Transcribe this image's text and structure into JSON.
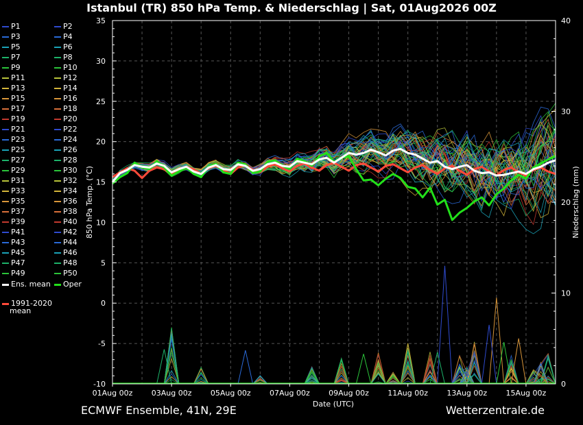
{
  "header": {
    "title": "Istanbul  (TR)  850 hPa Temp. & Niederschlag | Sat, 01Aug2026 00Z"
  },
  "footer": {
    "model": "ECMWF Ensemble, 41N, 29E",
    "source": "Wetterzentrale.de"
  },
  "legend": {
    "members": [
      {
        "label": "P1",
        "color": "#2f4bd0"
      },
      {
        "label": "P2",
        "color": "#2f4bd0"
      },
      {
        "label": "P3",
        "color": "#2a6ad8"
      },
      {
        "label": "P4",
        "color": "#2a6ad8"
      },
      {
        "label": "P5",
        "color": "#1aa3b8"
      },
      {
        "label": "P6",
        "color": "#1aa3b8"
      },
      {
        "label": "P7",
        "color": "#1db36a"
      },
      {
        "label": "P8",
        "color": "#1db36a"
      },
      {
        "label": "P9",
        "color": "#2bc43a"
      },
      {
        "label": "P10",
        "color": "#2bc43a"
      },
      {
        "label": "P11",
        "color": "#b9c43a"
      },
      {
        "label": "P12",
        "color": "#b9c43a"
      },
      {
        "label": "P13",
        "color": "#d4b63a"
      },
      {
        "label": "P14",
        "color": "#d4b63a"
      },
      {
        "label": "P15",
        "color": "#d9963a"
      },
      {
        "label": "P16",
        "color": "#d9963a"
      },
      {
        "label": "P17",
        "color": "#d9703a"
      },
      {
        "label": "P18",
        "color": "#d9703a"
      },
      {
        "label": "P19",
        "color": "#c43a2f"
      },
      {
        "label": "P20",
        "color": "#c43a2f"
      },
      {
        "label": "P21",
        "color": "#2f4bd0"
      },
      {
        "label": "P22",
        "color": "#2f4bd0"
      },
      {
        "label": "P23",
        "color": "#2a6ad8"
      },
      {
        "label": "P24",
        "color": "#2a6ad8"
      },
      {
        "label": "P25",
        "color": "#1aa3b8"
      },
      {
        "label": "P26",
        "color": "#1aa3b8"
      },
      {
        "label": "P27",
        "color": "#1db36a"
      },
      {
        "label": "P28",
        "color": "#1db36a"
      },
      {
        "label": "P29",
        "color": "#2bc43a"
      },
      {
        "label": "P30",
        "color": "#2bc43a"
      },
      {
        "label": "P31",
        "color": "#b9c43a"
      },
      {
        "label": "P32",
        "color": "#b9c43a"
      },
      {
        "label": "P33",
        "color": "#d4b63a"
      },
      {
        "label": "P34",
        "color": "#d4b63a"
      },
      {
        "label": "P35",
        "color": "#d9963a"
      },
      {
        "label": "P36",
        "color": "#d9963a"
      },
      {
        "label": "P37",
        "color": "#d9703a"
      },
      {
        "label": "P38",
        "color": "#d9703a"
      },
      {
        "label": "P39",
        "color": "#c43a2f"
      },
      {
        "label": "P40",
        "color": "#c43a2f"
      },
      {
        "label": "P41",
        "color": "#2f4bd0"
      },
      {
        "label": "P42",
        "color": "#2f4bd0"
      },
      {
        "label": "P43",
        "color": "#2a6ad8"
      },
      {
        "label": "P44",
        "color": "#2a6ad8"
      },
      {
        "label": "P45",
        "color": "#1aa3b8"
      },
      {
        "label": "P46",
        "color": "#1aa3b8"
      },
      {
        "label": "P47",
        "color": "#1db36a"
      },
      {
        "label": "P48",
        "color": "#1db36a"
      },
      {
        "label": "P49",
        "color": "#2bc43a"
      },
      {
        "label": "P50",
        "color": "#2bc43a"
      }
    ],
    "ens_mean": {
      "label": "Ens. mean",
      "color": "#ffffff"
    },
    "oper": {
      "label": "Oper",
      "color": "#22e01a"
    },
    "climate": {
      "label_line1": "1991-2020",
      "label_line2": "mean",
      "color": "#ff4a3a"
    }
  },
  "chart_data": {
    "type": "line",
    "xlabel": "Date (UTC)",
    "ylabel_left": "850 hPa Temp. (°C)",
    "ylabel_right": "Niederschlag (mm)",
    "ylim_left": [
      -10,
      35
    ],
    "ylim_right": [
      0,
      40
    ],
    "yticks_left": [
      -10,
      -5,
      0,
      5,
      10,
      15,
      20,
      25,
      30,
      35
    ],
    "yticks_right": [
      0,
      10,
      20,
      30,
      40
    ],
    "x_tick_labels": [
      "01Aug 00z",
      "03Aug 00z",
      "05Aug 00z",
      "07Aug 00z",
      "09Aug 00z",
      "11Aug 00z",
      "13Aug 00z",
      "15Aug 00z"
    ],
    "x_step_hours": 6,
    "x_range_hours": [
      0,
      360
    ],
    "grid": true,
    "series": [
      {
        "name": "Ens. mean",
        "values": [
          15.0,
          16.1,
          16.5,
          17.1,
          16.9,
          16.8,
          17.3,
          17.0,
          16.2,
          16.6,
          16.9,
          16.3,
          16.0,
          16.8,
          17.1,
          16.6,
          16.5,
          17.2,
          17.0,
          16.4,
          16.6,
          17.2,
          17.4,
          17.0,
          16.9,
          17.6,
          17.4,
          17.2,
          17.8,
          18.0,
          17.4,
          18.0,
          18.6,
          18.4,
          18.6,
          19.0,
          18.7,
          18.3,
          18.9,
          19.1,
          18.6,
          18.4,
          17.9,
          17.4,
          17.6,
          16.9,
          16.6,
          16.9,
          17.1,
          16.4,
          16.1,
          16.2,
          15.8,
          15.9,
          16.1,
          16.3,
          16.0,
          16.6,
          16.9,
          17.4,
          17.7
        ]
      },
      {
        "name": "Oper",
        "values": [
          14.8,
          15.6,
          16.1,
          17.4,
          16.8,
          16.6,
          17.6,
          16.8,
          15.8,
          16.3,
          16.8,
          16.0,
          15.6,
          16.9,
          17.3,
          16.2,
          16.0,
          17.4,
          17.2,
          16.1,
          16.3,
          17.5,
          17.7,
          17.0,
          16.6,
          17.9,
          17.6,
          17.0,
          18.2,
          18.6,
          17.5,
          18.0,
          18.2,
          16.6,
          15.2,
          15.3,
          14.6,
          15.4,
          16.0,
          15.5,
          14.4,
          14.2,
          13.1,
          14.3,
          12.2,
          12.8,
          10.3,
          11.2,
          11.8,
          12.6,
          13.1,
          12.1,
          13.5,
          14.2,
          15.2,
          15.9,
          15.4,
          16.8,
          17.3,
          17.8,
          18.2
        ]
      },
      {
        "name": "1991-2020 mean",
        "values": [
          15.6,
          16.2,
          16.7,
          16.4,
          15.5,
          16.4,
          16.8,
          16.6,
          16.0,
          16.6,
          16.9,
          16.6,
          16.0,
          16.7,
          17.0,
          16.5,
          16.0,
          16.8,
          17.1,
          16.5,
          16.2,
          16.9,
          17.2,
          16.7,
          16.3,
          17.0,
          17.3,
          16.8,
          16.4,
          17.1,
          17.4,
          16.9,
          16.4,
          17.1,
          17.3,
          16.8,
          16.3,
          17.0,
          17.2,
          16.7,
          16.2,
          16.8,
          17.1,
          16.5,
          16.0,
          16.7,
          17.0,
          16.4,
          15.9,
          16.6,
          16.9,
          16.3,
          15.8,
          16.5,
          16.8,
          16.2,
          15.8,
          16.5,
          16.8,
          16.3,
          16.0
        ]
      }
    ]
  }
}
